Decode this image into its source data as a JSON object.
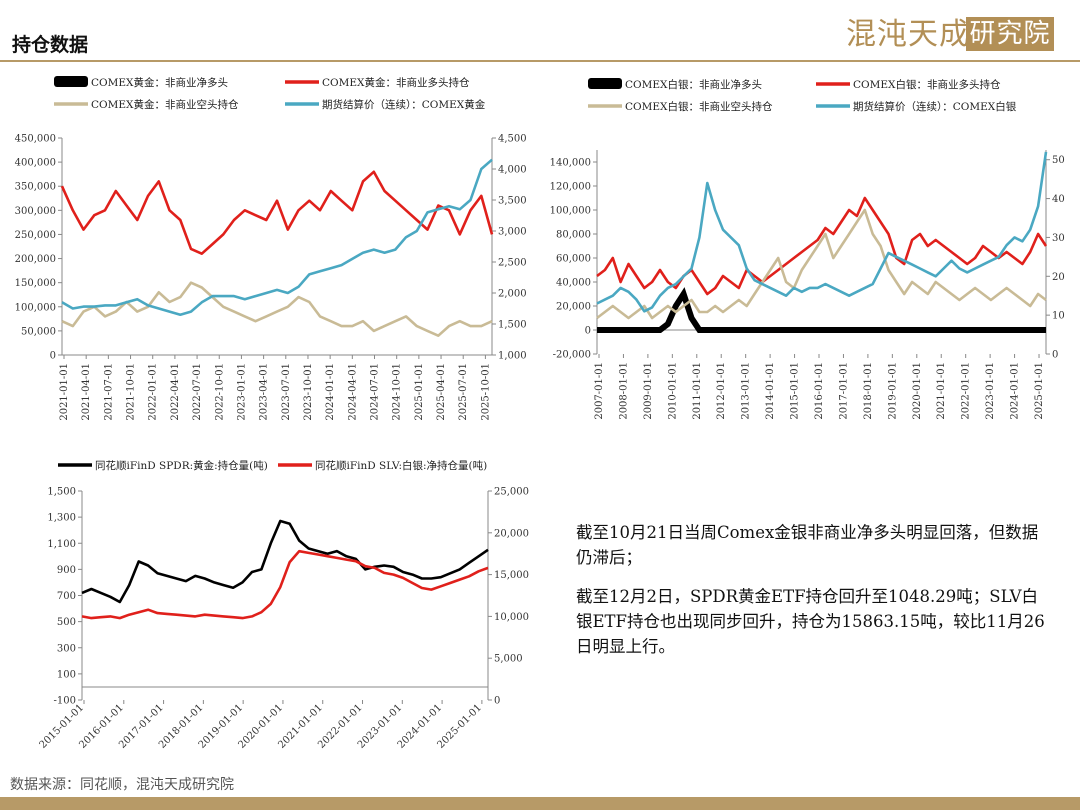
{
  "header": {
    "title": "持仓数据"
  },
  "brand": {
    "logo_left": "混沌天成",
    "logo_box": "研究院",
    "color": "#b28f56"
  },
  "footer": {
    "source": "数据来源：同花顺，混沌天成研究院"
  },
  "note": {
    "p1": "截至10月21日当周Comex金银非商业净多头明显回落，但数据仍滞后；",
    "p2": "截至12月2日，SPDR黄金ETF持仓回升至1048.29吨；SLV白银ETF持仓也出现同步回升，持仓为15863.15吨，较比11月26日明显上行。"
  },
  "chart_data": [
    {
      "type": "line",
      "x_ticks": [
        "2021-01-01",
        "2021-04-01",
        "2021-07-01",
        "2021-10-01",
        "2022-01-01",
        "2022-04-01",
        "2022-07-01",
        "2022-10-01",
        "2023-01-01",
        "2023-04-01",
        "2023-07-01",
        "2023-10-01",
        "2024-01-01",
        "2024-04-01",
        "2024-07-01",
        "2024-10-01",
        "2025-01-01",
        "2025-04-01",
        "2025-07-01",
        "2025-10-01"
      ],
      "ylim_left": [
        0,
        450000
      ],
      "y_ticks_left": [
        "0",
        "50,000",
        "100,000",
        "150,000",
        "200,000",
        "250,000",
        "300,000",
        "350,000",
        "400,000",
        "450,000"
      ],
      "ylim_right": [
        1000,
        4500
      ],
      "y_ticks_right": [
        "1,000",
        "1,500",
        "2,000",
        "2,500",
        "3,000",
        "3,500",
        "4,000",
        "4,500"
      ],
      "series": [
        {
          "name": "COMEX黄金：非商业净多头",
          "color": "#000000",
          "axis": "left",
          "values": []
        },
        {
          "name": "COMEX黄金：非商业多头持仓",
          "color": "#e0201b",
          "axis": "left",
          "values": [
            350000,
            300000,
            260000,
            290000,
            300000,
            340000,
            310000,
            280000,
            330000,
            360000,
            300000,
            280000,
            220000,
            210000,
            230000,
            250000,
            280000,
            300000,
            290000,
            280000,
            320000,
            260000,
            300000,
            320000,
            300000,
            340000,
            320000,
            300000,
            360000,
            380000,
            340000,
            320000,
            300000,
            280000,
            260000,
            310000,
            300000,
            250000,
            300000,
            330000,
            250000
          ]
        },
        {
          "name": "COMEX黄金：非商业空头持仓",
          "color": "#c9bb96",
          "axis": "left",
          "values": [
            70000,
            60000,
            90000,
            100000,
            80000,
            90000,
            110000,
            90000,
            100000,
            130000,
            110000,
            120000,
            150000,
            140000,
            120000,
            100000,
            90000,
            80000,
            70000,
            80000,
            90000,
            100000,
            120000,
            110000,
            80000,
            70000,
            60000,
            60000,
            70000,
            50000,
            60000,
            70000,
            80000,
            60000,
            50000,
            40000,
            60000,
            70000,
            60000,
            60000,
            70000
          ]
        },
        {
          "name": "期货结算价（连续）：COMEX黄金",
          "color": "#4aa8c2",
          "axis": "right",
          "values": [
            1850,
            1750,
            1780,
            1780,
            1800,
            1800,
            1850,
            1900,
            1800,
            1750,
            1700,
            1650,
            1700,
            1850,
            1950,
            1950,
            1950,
            1900,
            1950,
            2000,
            2050,
            2000,
            2100,
            2300,
            2350,
            2400,
            2450,
            2550,
            2650,
            2700,
            2650,
            2700,
            2900,
            3000,
            3300,
            3350,
            3400,
            3350,
            3500,
            4000,
            4150
          ]
        }
      ]
    },
    {
      "type": "line",
      "x_ticks": [
        "2007-01-01",
        "2008-01-01",
        "2009-01-01",
        "2010-01-01",
        "2011-01-01",
        "2012-01-01",
        "2013-01-01",
        "2014-01-01",
        "2015-01-01",
        "2016-01-01",
        "2017-01-01",
        "2018-01-01",
        "2019-01-01",
        "2020-01-01",
        "2021-01-01",
        "2022-01-01",
        "2023-01-01",
        "2024-01-01",
        "2025-01-01"
      ],
      "ylim_left": [
        -20000,
        150000
      ],
      "y_ticks_left": [
        "-20,000",
        "0",
        "20,000",
        "40,000",
        "60,000",
        "80,000",
        "100,000",
        "120,000",
        "140,000"
      ],
      "ylim_right": [
        0,
        52.5
      ],
      "y_ticks_right": [
        "0",
        "10",
        "20",
        "30",
        "40",
        "50"
      ],
      "series": [
        {
          "name": "COMEX白银：非商业净多头",
          "color": "#000000",
          "axis": "left",
          "values": [
            0,
            0,
            0,
            0,
            0,
            0,
            0,
            0,
            0,
            5000,
            20000,
            30000,
            10000,
            0,
            0,
            0,
            0,
            0,
            0,
            0,
            0,
            0,
            0,
            0,
            0,
            0,
            0,
            0,
            0,
            0,
            0,
            0,
            0,
            0,
            0,
            0,
            0,
            0,
            0,
            0,
            0,
            0,
            0,
            0,
            0,
            0,
            0,
            0,
            0,
            0,
            0,
            0,
            0,
            0,
            0,
            0,
            0,
            0
          ]
        },
        {
          "name": "COMEX白银：非商业多头持仓",
          "color": "#e0201b",
          "axis": "left",
          "values": [
            45000,
            50000,
            60000,
            40000,
            55000,
            45000,
            35000,
            40000,
            50000,
            40000,
            35000,
            45000,
            50000,
            40000,
            30000,
            35000,
            45000,
            40000,
            35000,
            50000,
            45000,
            40000,
            45000,
            50000,
            55000,
            60000,
            65000,
            70000,
            75000,
            85000,
            80000,
            90000,
            100000,
            95000,
            110000,
            100000,
            90000,
            80000,
            60000,
            55000,
            75000,
            80000,
            70000,
            75000,
            70000,
            65000,
            60000,
            55000,
            60000,
            70000,
            65000,
            60000,
            65000,
            60000,
            55000,
            65000,
            80000,
            70000
          ]
        },
        {
          "name": "COMEX白银：非商业空头持仓",
          "color": "#c9bb96",
          "axis": "left",
          "values": [
            10000,
            15000,
            20000,
            15000,
            10000,
            15000,
            20000,
            10000,
            15000,
            20000,
            15000,
            20000,
            25000,
            15000,
            15000,
            20000,
            15000,
            20000,
            25000,
            20000,
            30000,
            40000,
            50000,
            60000,
            40000,
            35000,
            50000,
            60000,
            70000,
            80000,
            60000,
            70000,
            80000,
            90000,
            100000,
            80000,
            70000,
            50000,
            40000,
            30000,
            40000,
            35000,
            30000,
            40000,
            35000,
            30000,
            25000,
            30000,
            35000,
            30000,
            25000,
            30000,
            35000,
            30000,
            25000,
            20000,
            30000,
            25000
          ]
        },
        {
          "name": "期货结算价（连续）：COMEX白银",
          "color": "#4aa8c2",
          "axis": "right",
          "values": [
            13,
            14,
            15,
            17,
            16,
            14,
            11,
            12,
            15,
            17,
            18,
            20,
            22,
            30,
            44,
            37,
            32,
            30,
            28,
            22,
            19,
            18,
            17,
            16,
            15,
            17,
            16,
            17,
            17,
            18,
            17,
            16,
            15,
            16,
            17,
            18,
            22,
            26,
            25,
            24,
            23,
            22,
            21,
            20,
            22,
            24,
            22,
            21,
            22,
            23,
            24,
            25,
            28,
            30,
            29,
            32,
            38,
            52
          ]
        }
      ]
    },
    {
      "type": "line",
      "x_ticks": [
        "2015-01-01",
        "2016-01-01",
        "2017-01-01",
        "2018-01-01",
        "2019-01-01",
        "2020-01-01",
        "2021-01-01",
        "2022-01-01",
        "2023-01-01",
        "2024-01-01",
        "2025-01-01"
      ],
      "ylim_left": [
        -100,
        1500
      ],
      "y_ticks_left": [
        "-100",
        "100",
        "300",
        "500",
        "700",
        "900",
        "1,100",
        "1,300",
        "1,500"
      ],
      "ylim_right": [
        0,
        25000
      ],
      "y_ticks_right": [
        "0",
        "5,000",
        "10,000",
        "15,000",
        "20,000",
        "25,000"
      ],
      "series": [
        {
          "name": "同花顺iFinD SPDR:黄金:持仓量(吨)",
          "color": "#000000",
          "axis": "left",
          "values": [
            720,
            750,
            720,
            690,
            650,
            780,
            960,
            930,
            870,
            850,
            830,
            810,
            850,
            830,
            800,
            780,
            760,
            800,
            880,
            900,
            1100,
            1270,
            1250,
            1120,
            1060,
            1040,
            1020,
            1040,
            1000,
            980,
            900,
            920,
            930,
            920,
            880,
            860,
            830,
            830,
            840,
            870,
            900,
            950,
            1000,
            1050
          ]
        },
        {
          "name": "同花顺iFinD SLV:白银:净持仓量(吨)",
          "color": "#e0201b",
          "axis": "right",
          "values": [
            10000,
            9800,
            9900,
            10000,
            9800,
            10200,
            10500,
            10800,
            10400,
            10300,
            10200,
            10100,
            10000,
            10200,
            10100,
            10000,
            9900,
            9800,
            10000,
            10500,
            11500,
            13500,
            16500,
            17800,
            17600,
            17400,
            17200,
            17000,
            16800,
            16600,
            16000,
            15800,
            15200,
            15000,
            14600,
            14000,
            13400,
            13200,
            13600,
            14000,
            14400,
            14800,
            15400,
            15800
          ]
        }
      ]
    }
  ]
}
